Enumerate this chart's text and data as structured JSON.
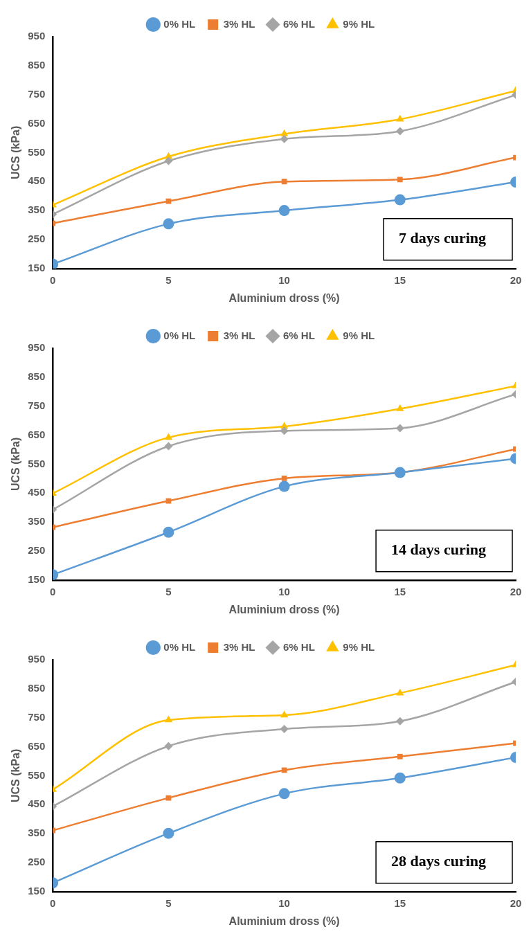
{
  "chart_data": [
    {
      "type": "line",
      "xlabel": "Aluminium dross (%)",
      "ylabel": "UCS (kPa)",
      "x": [
        0,
        5,
        10,
        15,
        20
      ],
      "xlim": [
        0,
        20
      ],
      "xticks": [
        0,
        5,
        10,
        15,
        20
      ],
      "ylim": [
        150,
        950
      ],
      "yticks": [
        150,
        250,
        350,
        450,
        550,
        650,
        750,
        850,
        950
      ],
      "grid": false,
      "legend": "top",
      "annotations": [
        "7 days curing"
      ],
      "series": [
        {
          "name": "0% HL",
          "color": "#5b9bd5",
          "marker": "circle",
          "values": [
            165,
            304,
            350,
            387,
            448
          ]
        },
        {
          "name": "3% HL",
          "color": "#ed7d31",
          "marker": "square",
          "values": [
            306,
            382,
            450,
            457,
            533
          ]
        },
        {
          "name": "6% HL",
          "color": "#a5a5a5",
          "marker": "diamond",
          "values": [
            337,
            521,
            597,
            624,
            749
          ]
        },
        {
          "name": "9% HL",
          "color": "#ffc000",
          "marker": "triangle",
          "values": [
            369,
            536,
            614,
            665,
            764
          ]
        }
      ]
    },
    {
      "type": "line",
      "xlabel": "Aluminium dross (%)",
      "ylabel": "UCS (kPa)",
      "x": [
        0,
        5,
        10,
        15,
        20
      ],
      "xlim": [
        0,
        20
      ],
      "xticks": [
        0,
        5,
        10,
        15,
        20
      ],
      "ylim": [
        150,
        950
      ],
      "yticks": [
        150,
        250,
        350,
        450,
        550,
        650,
        750,
        850,
        950
      ],
      "grid": false,
      "legend": "top",
      "annotations": [
        "14 days curing"
      ],
      "series": [
        {
          "name": "0% HL",
          "color": "#5b9bd5",
          "marker": "circle",
          "values": [
            168,
            315,
            473,
            521,
            569
          ]
        },
        {
          "name": "3% HL",
          "color": "#ed7d31",
          "marker": "square",
          "values": [
            332,
            423,
            501,
            521,
            602
          ]
        },
        {
          "name": "6% HL",
          "color": "#a5a5a5",
          "marker": "diamond",
          "values": [
            393,
            612,
            665,
            674,
            791
          ]
        },
        {
          "name": "9% HL",
          "color": "#ffc000",
          "marker": "triangle",
          "values": [
            449,
            642,
            680,
            741,
            820
          ]
        }
      ]
    },
    {
      "type": "line",
      "xlabel": "Aluminium dross (%)",
      "ylabel": "UCS (kPa)",
      "x": [
        0,
        5,
        10,
        15,
        20
      ],
      "xlim": [
        0,
        20
      ],
      "xticks": [
        0,
        5,
        10,
        15,
        20
      ],
      "ylim": [
        150,
        950
      ],
      "yticks": [
        150,
        250,
        350,
        450,
        550,
        650,
        750,
        850,
        950
      ],
      "grid": false,
      "legend": "top",
      "annotations": [
        "28 days curing"
      ],
      "series": [
        {
          "name": "0% HL",
          "color": "#5b9bd5",
          "marker": "circle",
          "values": [
            180,
            351,
            488,
            542,
            613
          ]
        },
        {
          "name": "3% HL",
          "color": "#ed7d31",
          "marker": "square",
          "values": [
            361,
            473,
            569,
            616,
            662
          ]
        },
        {
          "name": "6% HL",
          "color": "#a5a5a5",
          "marker": "diamond",
          "values": [
            444,
            652,
            711,
            738,
            874
          ]
        },
        {
          "name": "9% HL",
          "color": "#ffc000",
          "marker": "triangle",
          "values": [
            502,
            742,
            759,
            835,
            932
          ]
        }
      ]
    }
  ]
}
